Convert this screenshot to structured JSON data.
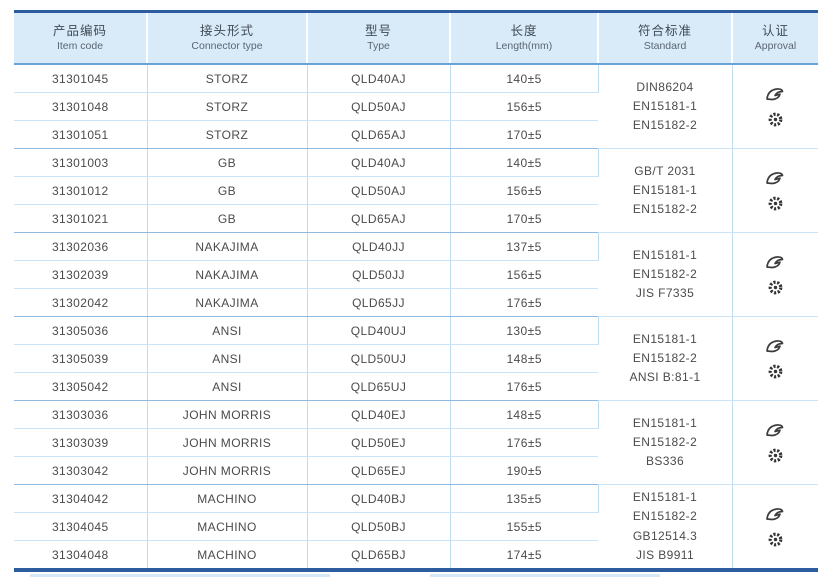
{
  "colors": {
    "frame_navy": "#2e5d9f",
    "header_bg": "#d9ebf8",
    "header_rule": "#6aa3d8",
    "row_rule": "#cbe3f6",
    "group_rule": "#8fb9e0",
    "column_rule": "#bedcf2",
    "text": "#4b4b4b"
  },
  "table": {
    "columns": [
      {
        "zh": "产品编码",
        "en": "Item code"
      },
      {
        "zh": "接头形式",
        "en": "Connector type"
      },
      {
        "zh": "型号",
        "en": "Type"
      },
      {
        "zh": "长度",
        "en": "Length(mm)"
      },
      {
        "zh": "符合标准",
        "en": "Standard"
      },
      {
        "zh": "认证",
        "en": "Approval"
      }
    ],
    "groups": [
      {
        "rows": [
          {
            "item_code": "31301045",
            "connector": "STORZ",
            "type": "QLD40AJ",
            "length": "140±5"
          },
          {
            "item_code": "31301048",
            "connector": "STORZ",
            "type": "QLD50AJ",
            "length": "156±5"
          },
          {
            "item_code": "31301051",
            "connector": "STORZ",
            "type": "QLD65AJ",
            "length": "170±5"
          }
        ],
        "standards": [
          "DIN86204",
          "EN15181-1",
          "EN15182-2"
        ],
        "approval_icons": [
          "certificate-icon",
          "wheelmark-icon"
        ]
      },
      {
        "rows": [
          {
            "item_code": "31301003",
            "connector": "GB",
            "type": "QLD40AJ",
            "length": "140±5"
          },
          {
            "item_code": "31301012",
            "connector": "GB",
            "type": "QLD50AJ",
            "length": "156±5"
          },
          {
            "item_code": "31301021",
            "connector": "GB",
            "type": "QLD65AJ",
            "length": "170±5"
          }
        ],
        "standards": [
          "GB/T 2031",
          "EN15181-1",
          "EN15182-2"
        ],
        "approval_icons": [
          "certificate-icon",
          "wheelmark-icon"
        ]
      },
      {
        "rows": [
          {
            "item_code": "31302036",
            "connector": "NAKAJIMA",
            "type": "QLD40JJ",
            "length": "137±5"
          },
          {
            "item_code": "31302039",
            "connector": "NAKAJIMA",
            "type": "QLD50JJ",
            "length": "156±5"
          },
          {
            "item_code": "31302042",
            "connector": "NAKAJIMA",
            "type": "QLD65JJ",
            "length": "176±5"
          }
        ],
        "standards": [
          "EN15181-1",
          "EN15182-2",
          "JIS F7335"
        ],
        "approval_icons": [
          "certificate-icon",
          "wheelmark-icon"
        ]
      },
      {
        "rows": [
          {
            "item_code": "31305036",
            "connector": "ANSI",
            "type": "QLD40UJ",
            "length": "130±5"
          },
          {
            "item_code": "31305039",
            "connector": "ANSI",
            "type": "QLD50UJ",
            "length": "148±5"
          },
          {
            "item_code": "31305042",
            "connector": "ANSI",
            "type": "QLD65UJ",
            "length": "176±5"
          }
        ],
        "standards": [
          "EN15181-1",
          "EN15182-2",
          "ANSI B:81-1"
        ],
        "approval_icons": [
          "certificate-icon",
          "wheelmark-icon"
        ]
      },
      {
        "rows": [
          {
            "item_code": "31303036",
            "connector": "JOHN MORRIS",
            "type": "QLD40EJ",
            "length": "148±5"
          },
          {
            "item_code": "31303039",
            "connector": "JOHN MORRIS",
            "type": "QLD50EJ",
            "length": "176±5"
          },
          {
            "item_code": "31303042",
            "connector": "JOHN MORRIS",
            "type": "QLD65EJ",
            "length": "190±5"
          }
        ],
        "standards": [
          "EN15181-1",
          "EN15182-2",
          "BS336"
        ],
        "approval_icons": [
          "certificate-icon",
          "wheelmark-icon"
        ]
      },
      {
        "rows": [
          {
            "item_code": "31304042",
            "connector": "MACHINO",
            "type": "QLD40BJ",
            "length": "135±5"
          },
          {
            "item_code": "31304045",
            "connector": "MACHINO",
            "type": "QLD50BJ",
            "length": "155±5"
          },
          {
            "item_code": "31304048",
            "connector": "MACHINO",
            "type": "QLD65BJ",
            "length": "174±5"
          }
        ],
        "standards": [
          "EN15181-1",
          "EN15182-2",
          "GB12514.3",
          "JIS B9911"
        ],
        "approval_icons": [
          "certificate-icon",
          "wheelmark-icon"
        ]
      }
    ]
  }
}
